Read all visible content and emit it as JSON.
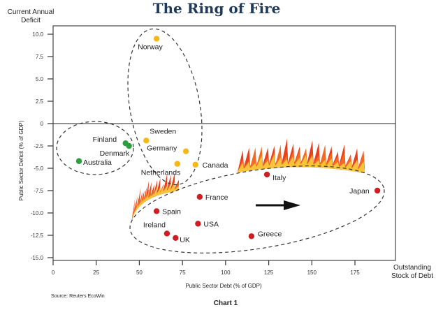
{
  "chart_data": {
    "type": "scatter",
    "title": "The Ring of Fire",
    "xlabel": "Public Sector Debt (% of GDP)",
    "ylabel": "Public Sector Deficit (% of GDP)",
    "x_axis_note": "Outstanding Stock of Debt",
    "y_axis_note": "Current Annual Deficit",
    "source": "Source: Reuters EcoWin",
    "caption": "Chart 1",
    "xlim": [
      0,
      198
    ],
    "ylim": [
      -15,
      11
    ],
    "xticks": [
      "0",
      "25",
      "50",
      "75",
      "100",
      "125",
      "150",
      "175"
    ],
    "xtick_values": [
      0,
      25,
      50,
      75,
      100,
      125,
      150,
      175
    ],
    "yticks": [
      "10.0",
      "7.5",
      "5.0",
      "2.5",
      "0",
      "-2.5",
      "-5.0",
      "-7.5",
      "-10.0",
      "-12.5",
      "-15.0"
    ],
    "ytick_values": [
      10,
      7.5,
      5,
      2.5,
      0,
      -2.5,
      -5,
      -7.5,
      -10,
      -12.5,
      -15
    ],
    "grid": false,
    "colors": {
      "green": "#2e9e3e",
      "yellow": "#f4b81a",
      "red": "#cc1f24",
      "title": "#1f3a5a"
    },
    "points": [
      {
        "label": "Norway",
        "x": 60,
        "y": 9.5,
        "group": "yellow"
      },
      {
        "label": "Sweden",
        "x": 54,
        "y": -1.9,
        "group": "yellow"
      },
      {
        "label": "Germany",
        "x": 77,
        "y": -3.1,
        "group": "yellow"
      },
      {
        "label": "Netherlands",
        "x": 72,
        "y": -4.5,
        "group": "yellow"
      },
      {
        "label": "Canada",
        "x": 82.5,
        "y": -4.6,
        "group": "yellow"
      },
      {
        "label": "Finland",
        "x": 42,
        "y": -2.2,
        "group": "green"
      },
      {
        "label": "Denmark",
        "x": 44,
        "y": -2.5,
        "group": "green"
      },
      {
        "label": "Australia",
        "x": 15,
        "y": -4.2,
        "group": "green"
      },
      {
        "label": "Italy",
        "x": 124,
        "y": -5.7,
        "group": "red"
      },
      {
        "label": "Japan",
        "x": 188,
        "y": -7.5,
        "group": "red"
      },
      {
        "label": "France",
        "x": 85,
        "y": -8.2,
        "group": "red"
      },
      {
        "label": "Spain",
        "x": 60,
        "y": -9.8,
        "group": "red"
      },
      {
        "label": "USA",
        "x": 84,
        "y": -11.2,
        "group": "red"
      },
      {
        "label": "Ireland",
        "x": 66,
        "y": -12.3,
        "group": "red"
      },
      {
        "label": "UK",
        "x": 71,
        "y": -12.8,
        "group": "red"
      },
      {
        "label": "Greece",
        "x": 115,
        "y": -12.6,
        "group": "red"
      }
    ]
  }
}
